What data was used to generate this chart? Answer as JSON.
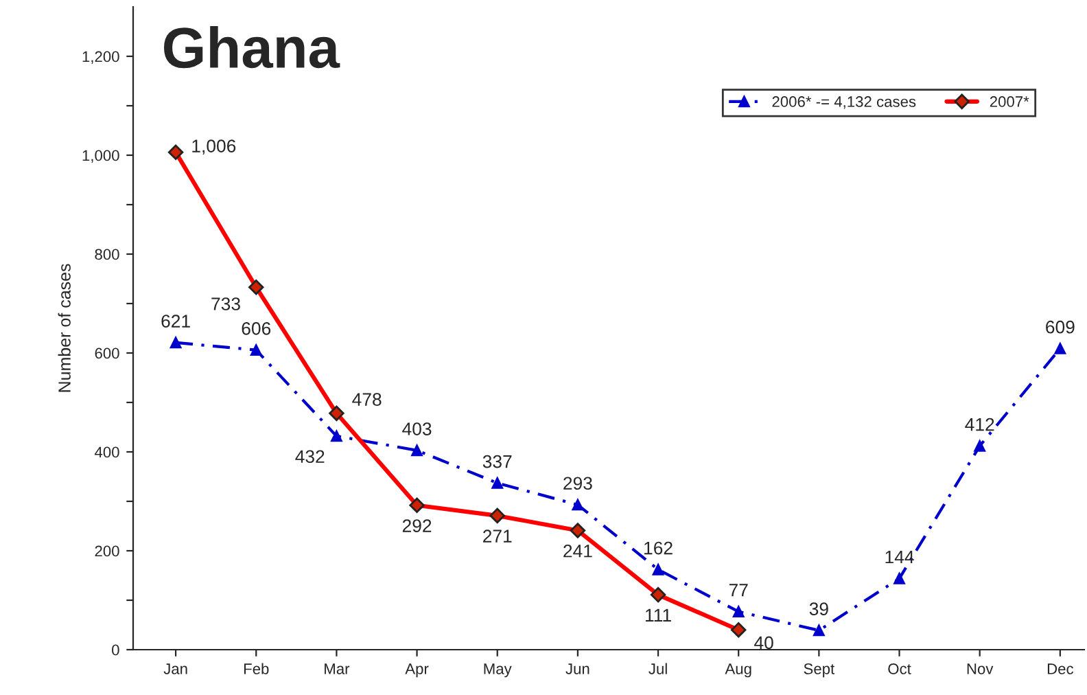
{
  "chart_data": {
    "type": "line",
    "title": "Ghana",
    "ylabel": "Number of cases",
    "categories": [
      "Jan",
      "Feb",
      "Mar",
      "Apr",
      "May",
      "Jun",
      "Jul",
      "Aug",
      "Sept",
      "Oct",
      "Nov",
      "Dec"
    ],
    "series": [
      {
        "name": "2006* -= 4,132 cases",
        "color": "#0000cc",
        "marker": "triangle",
        "line_style": "dashed",
        "values": [
          621,
          606,
          432,
          403,
          337,
          293,
          162,
          77,
          39,
          144,
          412,
          609
        ],
        "value_labels": [
          "621",
          "606",
          "432",
          "403",
          "337",
          "293",
          "162",
          "77",
          "39",
          "144",
          "412",
          "609"
        ]
      },
      {
        "name": "2007*",
        "color": "#ff0000",
        "marker": "diamond",
        "line_style": "solid",
        "values": [
          1006,
          733,
          478,
          292,
          271,
          241,
          111,
          40,
          null,
          null,
          null,
          null
        ],
        "value_labels": [
          "1,006",
          "733",
          "478",
          "292",
          "271",
          "241",
          "111",
          "40",
          null,
          null,
          null,
          null
        ]
      }
    ],
    "ylim": [
      0,
      1300
    ],
    "yticks": [
      0,
      {
        "value": 100,
        "label": null
      },
      {
        "value": 200,
        "label": "200"
      },
      {
        "value": 300,
        "label": null
      },
      {
        "value": 400,
        "label": "400"
      },
      {
        "value": 500,
        "label": null
      },
      {
        "value": 600,
        "label": "600"
      },
      {
        "value": 700,
        "label": null
      },
      {
        "value": 800,
        "label": "800"
      },
      {
        "value": 900,
        "label": null
      },
      {
        "value": 1000,
        "label": "1,000"
      },
      {
        "value": 1100,
        "label": null
      },
      {
        "value": 1200,
        "label": "1,200"
      }
    ],
    "grid": false,
    "legend": "top right"
  }
}
